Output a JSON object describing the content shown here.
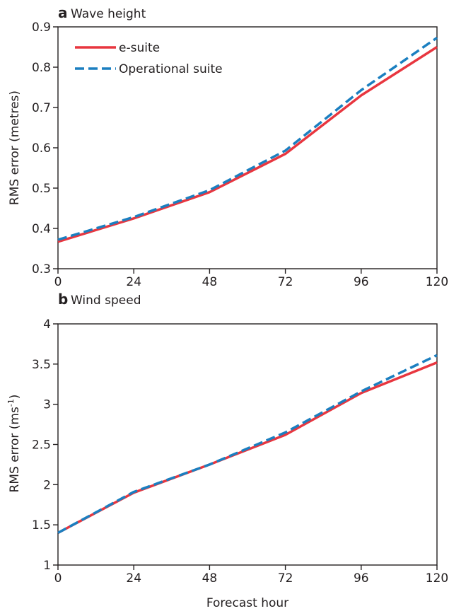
{
  "colors": {
    "esuite": "#e8363f",
    "operational": "#1b7fc0",
    "axis": "#231f20"
  },
  "chart_data": [
    {
      "type": "line",
      "panel_letter": "a",
      "title": "Wave height",
      "xlabel": "",
      "ylabel": "RMS error (metres)",
      "xlim": [
        0,
        120
      ],
      "ylim": [
        0.3,
        0.9
      ],
      "xticks": [
        0,
        24,
        48,
        72,
        96,
        120
      ],
      "yticks": [
        0.3,
        0.4,
        0.5,
        0.6,
        0.7,
        0.8,
        0.9
      ],
      "ytick_labels": [
        "0.3",
        "0.4",
        "0.5",
        "0.6",
        "0.7",
        "0.8",
        "0.9"
      ],
      "legend": {
        "position": "top-left"
      },
      "x": [
        0,
        24,
        48,
        72,
        96,
        120
      ],
      "series": [
        {
          "key": "esuite",
          "name": "e-suite",
          "style": "solid",
          "values": [
            0.367,
            0.425,
            0.49,
            0.585,
            0.73,
            0.85
          ]
        },
        {
          "key": "operational",
          "name": "Operational suite",
          "style": "dashed",
          "values": [
            0.372,
            0.428,
            0.495,
            0.593,
            0.743,
            0.873
          ]
        }
      ]
    },
    {
      "type": "line",
      "panel_letter": "b",
      "title": "Wind speed",
      "xlabel": "Forecast hour",
      "ylabel": "RMS error (ms",
      "ylabel_sup": "-1",
      "ylabel_end": ")",
      "xlim": [
        0,
        120
      ],
      "ylim": [
        1,
        4
      ],
      "xticks": [
        0,
        24,
        48,
        72,
        96,
        120
      ],
      "yticks": [
        1,
        1.5,
        2,
        2.5,
        3,
        3.5,
        4
      ],
      "ytick_labels": [
        "1",
        "1.5",
        "2",
        "2.5",
        "3",
        "3.5",
        "4"
      ],
      "x": [
        0,
        24,
        48,
        72,
        96,
        120
      ],
      "series": [
        {
          "key": "esuite",
          "style": "solid",
          "values": [
            1.4,
            1.9,
            2.25,
            2.62,
            3.14,
            3.52
          ]
        },
        {
          "key": "operational",
          "style": "dashed",
          "values": [
            1.4,
            1.91,
            2.25,
            2.65,
            3.16,
            3.61
          ]
        }
      ]
    }
  ]
}
